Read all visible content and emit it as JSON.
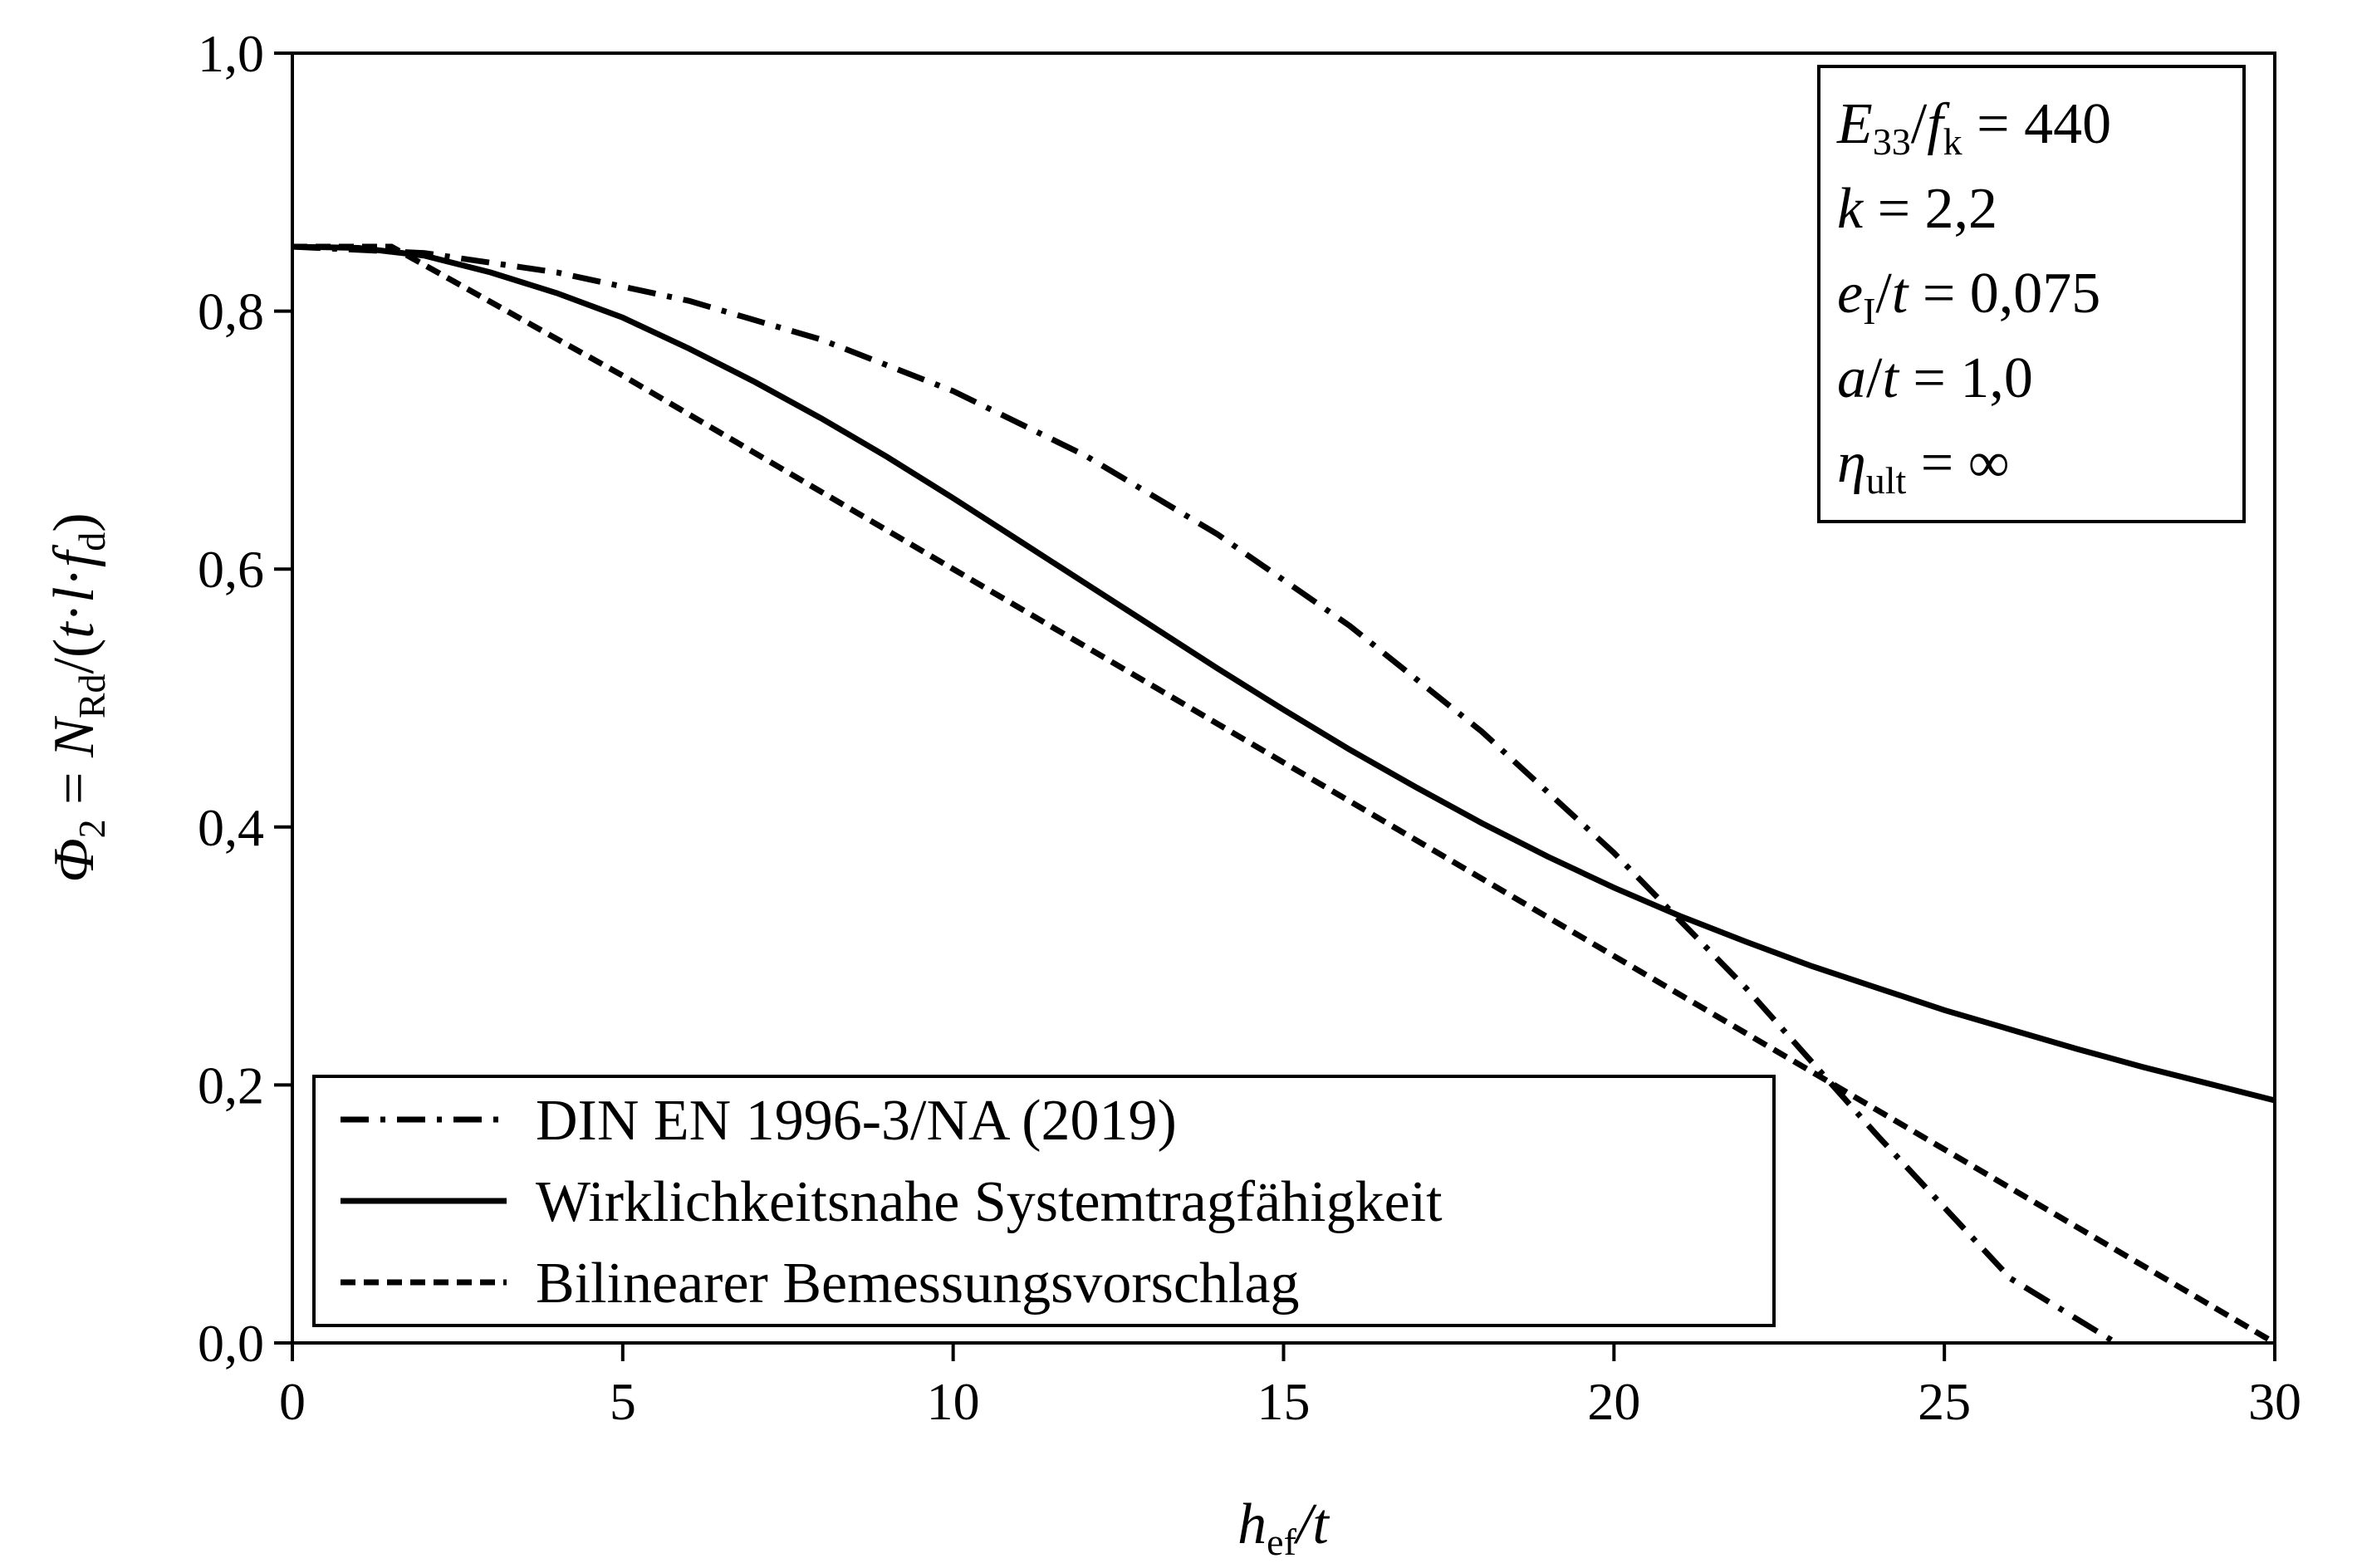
{
  "chart_data": {
    "type": "line",
    "x_axis": {
      "label_main": "h",
      "label_sub": "ef",
      "label_rest": "/t",
      "range": [
        0,
        30
      ],
      "ticks": [
        0,
        5,
        10,
        15,
        20,
        25,
        30
      ],
      "tick_labels": [
        "0",
        "5",
        "10",
        "15",
        "20",
        "25",
        "30"
      ]
    },
    "y_axis": {
      "label_phi": "Φ",
      "label_phi_sub": "2",
      "label_eq": " = ",
      "label_N": "N",
      "label_N_sub": "Rd",
      "label_open": "/(",
      "label_t": "t",
      "label_dot1": "·",
      "label_l": "l",
      "label_dot2": "·",
      "label_f": "f",
      "label_f_sub": "d",
      "label_close": ")",
      "range": [
        0,
        1
      ],
      "ticks": [
        0,
        0.2,
        0.4,
        0.6,
        0.8,
        1.0
      ],
      "tick_labels": [
        "0,0",
        "0,2",
        "0,4",
        "0,6",
        "0,8",
        "1,0"
      ]
    },
    "grid": false,
    "legend_position": "bottom-left",
    "parameters": [
      {
        "main": "E",
        "sub": "33",
        "mid": "/",
        "main2": "f",
        "sub2": "k",
        "value": " = 440"
      },
      {
        "main": "k",
        "sub": "",
        "mid": "",
        "main2": "",
        "sub2": "",
        "value": " = 2,2"
      },
      {
        "main": "e",
        "sub": "I",
        "mid": "/",
        "main2": "t",
        "sub2": "",
        "value": " = 0,075"
      },
      {
        "main": "a",
        "sub": "",
        "mid": "/",
        "main2": "t",
        "sub2": "",
        "value": " = 1,0"
      },
      {
        "main": "η",
        "sub": "ult",
        "mid": "",
        "main2": "",
        "sub2": "",
        "value": " = ∞"
      }
    ],
    "series": [
      {
        "name": "DIN EN 1996-3/NA (2019)",
        "style": "dash-dot",
        "x": [
          0,
          2,
          4,
          6,
          8,
          10,
          12,
          14,
          16,
          18,
          20,
          22,
          24,
          26,
          27.6
        ],
        "y": [
          0.85,
          0.845,
          0.83,
          0.808,
          0.778,
          0.738,
          0.688,
          0.627,
          0.556,
          0.474,
          0.38,
          0.275,
          0.16,
          0.05,
          0.0
        ]
      },
      {
        "name": "Wirklichkeitsnahe Systemtragfähigkeit",
        "style": "solid",
        "x": [
          0,
          1,
          2,
          3,
          4,
          5,
          6,
          7,
          8,
          9,
          10,
          11,
          12,
          13,
          14,
          15,
          16,
          17,
          18,
          19,
          20,
          21,
          22,
          23,
          24,
          25,
          26,
          27,
          28,
          29,
          30
        ],
        "y": [
          0.85,
          0.849,
          0.843,
          0.83,
          0.814,
          0.795,
          0.771,
          0.745,
          0.717,
          0.687,
          0.655,
          0.622,
          0.589,
          0.556,
          0.523,
          0.491,
          0.46,
          0.431,
          0.403,
          0.377,
          0.353,
          0.331,
          0.311,
          0.292,
          0.275,
          0.258,
          0.243,
          0.228,
          0.214,
          0.201,
          0.188
        ]
      },
      {
        "name": "Bilinearer Bemessungsvorschlag",
        "style": "dashed",
        "x": [
          0,
          1.5,
          5,
          10,
          15,
          20,
          25,
          30
        ],
        "y": [
          0.85,
          0.85,
          0.75,
          0.6,
          0.45,
          0.3,
          0.15,
          0.0
        ]
      }
    ]
  }
}
